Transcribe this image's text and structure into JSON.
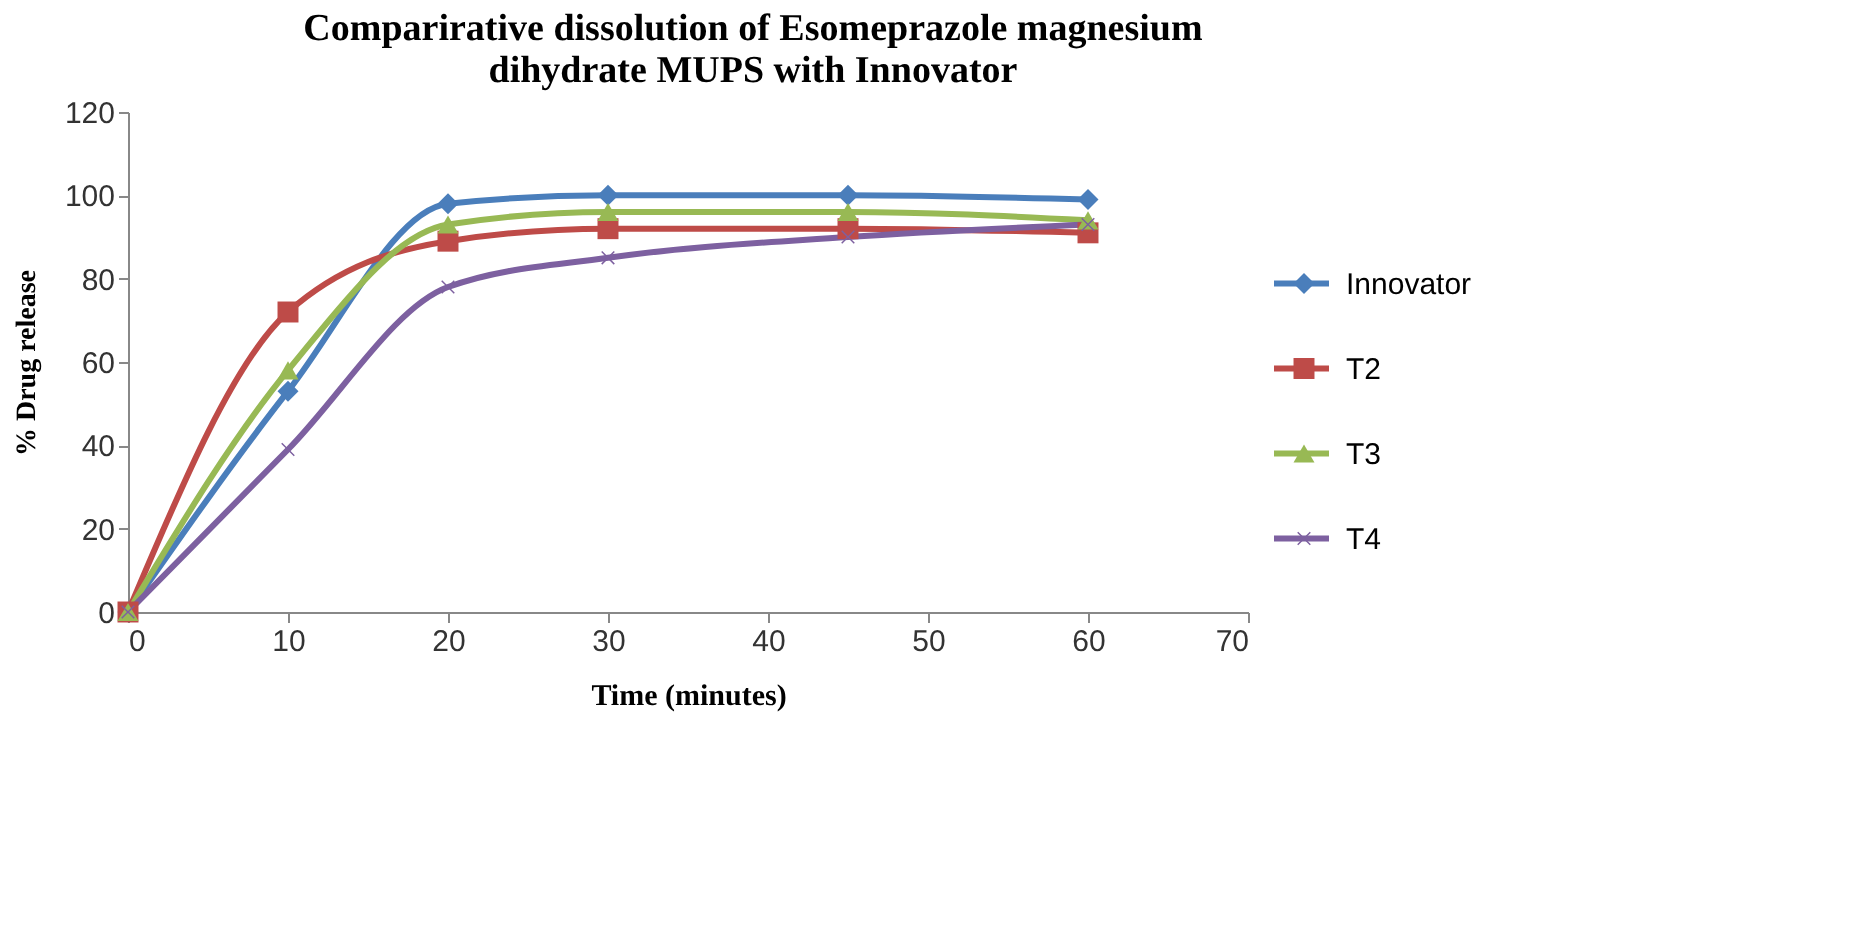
{
  "chart_data": {
    "type": "line",
    "title": [
      "Comparirative dissolution of Esomeprazole magnesium",
      "dihydrate MUPS with Innovator"
    ],
    "xlabel": "Time (minutes)",
    "ylabel": "% Drug release",
    "x": [
      0,
      10,
      20,
      30,
      45,
      60
    ],
    "series": [
      {
        "name": "Innovator",
        "color": "#4a7ebb",
        "marker": "diamond",
        "values": [
          0,
          53,
          98,
          100,
          100,
          99
        ]
      },
      {
        "name": "T2",
        "color": "#be4b48",
        "marker": "square",
        "values": [
          0,
          72,
          89,
          92,
          92,
          91
        ]
      },
      {
        "name": "T3",
        "color": "#98b954",
        "marker": "triangle",
        "values": [
          0,
          58,
          93,
          96,
          96,
          94
        ]
      },
      {
        "name": "T4",
        "color": "#7d60a0",
        "marker": "cross",
        "values": [
          0,
          39,
          78,
          85,
          90,
          93
        ]
      }
    ],
    "xlim": [
      0,
      70
    ],
    "xticks": [
      0,
      10,
      20,
      30,
      40,
      50,
      60,
      70
    ],
    "ylim": [
      0,
      120
    ],
    "yticks": [
      0,
      20,
      40,
      60,
      80,
      100,
      120
    ],
    "grid": false,
    "legend": "right",
    "line_style": "solid"
  }
}
